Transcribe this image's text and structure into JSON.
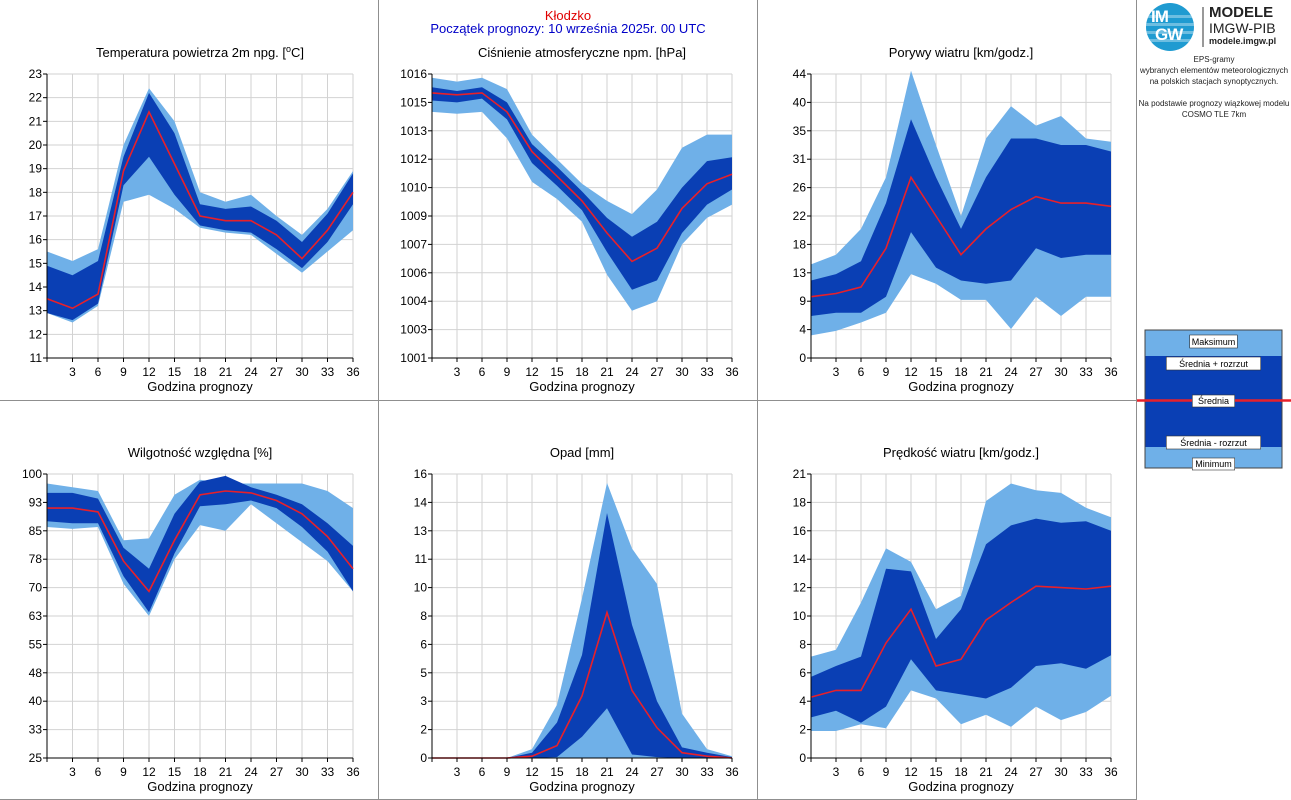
{
  "header": {
    "station": "Kłodzko",
    "forecast_start": "Początek prognozy: 10 września 2025r. 00 UTC"
  },
  "logo": {
    "circle_top": "IM",
    "circle_bottom": "GW",
    "line1": "MODELE",
    "line2": "IMGW-PIB",
    "line3": "modele.imgw.pl"
  },
  "description": {
    "lines": [
      "EPS-gramy",
      "wybranych elementów meteorologicznych",
      "na polskich stacjach  synoptycznych.",
      "",
      "Na podstawie prognozy wiązkowej modelu",
      "COSMO TLE 7km"
    ]
  },
  "legend": {
    "max": "Maksimum",
    "mean_plus": "Średnia + rozrzut",
    "mean": "Średnia",
    "mean_minus": "Średnia - rozrzut",
    "min": "Minimum"
  },
  "colors": {
    "envelope": "#6fb0e8",
    "spread": "#0a3fb4",
    "mean": "#e8202a",
    "background": "#ffffff",
    "station_text": "#e00000",
    "start_text": "#0000c8"
  },
  "chart_data": [
    {
      "type": "area",
      "title_parts": [
        "Temperatura powietrza 2m npg. [",
        "o",
        "C]"
      ],
      "xlabel": "Godzina prognozy",
      "x": [
        0,
        3,
        6,
        9,
        12,
        15,
        18,
        21,
        24,
        27,
        30,
        33,
        36
      ],
      "xticks": [
        3,
        6,
        9,
        12,
        15,
        18,
        21,
        24,
        27,
        30,
        33,
        36
      ],
      "ylim": [
        11,
        23
      ],
      "yticks": [
        "11",
        "12",
        "13",
        "14",
        "15",
        "16",
        "17",
        "18",
        "19",
        "20",
        "21",
        "22",
        "23"
      ],
      "grid": true,
      "max": [
        15.5,
        15.1,
        15.6,
        20.0,
        22.4,
        21.0,
        18.0,
        17.6,
        17.9,
        17.0,
        16.2,
        17.3,
        18.9
      ],
      "mean_plus": [
        14.9,
        14.5,
        15.1,
        19.5,
        22.2,
        20.5,
        17.5,
        17.3,
        17.4,
        16.8,
        15.9,
        17.1,
        18.8
      ],
      "mean": [
        13.5,
        13.1,
        13.7,
        18.9,
        21.4,
        19.2,
        17.0,
        16.8,
        16.8,
        16.2,
        15.2,
        16.4,
        18.0
      ],
      "mean_minus": [
        12.9,
        12.6,
        13.3,
        18.3,
        19.5,
        17.9,
        16.6,
        16.4,
        16.3,
        15.6,
        14.8,
        15.9,
        17.5
      ],
      "min": [
        12.9,
        12.5,
        13.2,
        17.6,
        17.9,
        17.3,
        16.5,
        16.3,
        16.2,
        15.4,
        14.6,
        15.5,
        16.4
      ]
    },
    {
      "type": "area",
      "title_parts": [
        "Ciśnienie atmosferyczne npm. [hPa]"
      ],
      "xlabel": "Godzina prognozy",
      "x": [
        0,
        3,
        6,
        9,
        12,
        15,
        18,
        21,
        24,
        27,
        30,
        33,
        36
      ],
      "xticks": [
        3,
        6,
        9,
        12,
        15,
        18,
        21,
        24,
        27,
        30,
        33,
        36
      ],
      "ylim": [
        1001,
        1016
      ],
      "yticks": [
        "1001",
        "1003",
        "1004",
        "1006",
        "1007",
        "1009",
        "1010",
        "1012",
        "1013",
        "1015",
        "1016"
      ],
      "grid": true,
      "max": [
        1015.8,
        1015.6,
        1015.8,
        1015.2,
        1012.8,
        1011.5,
        1010.2,
        1009.3,
        1008.6,
        1009.9,
        1012.1,
        1012.8,
        1012.8
      ],
      "mean_plus": [
        1015.3,
        1015.1,
        1015.3,
        1014.5,
        1012.3,
        1011.1,
        1009.8,
        1008.4,
        1007.4,
        1008.2,
        1010.0,
        1011.4,
        1011.6
      ],
      "mean": [
        1015.0,
        1014.9,
        1015.0,
        1014.0,
        1011.9,
        1010.6,
        1009.3,
        1007.6,
        1006.1,
        1006.8,
        1008.9,
        1010.2,
        1010.7
      ],
      "mean_minus": [
        1014.6,
        1014.5,
        1014.7,
        1013.6,
        1011.3,
        1010.1,
        1008.8,
        1006.6,
        1004.6,
        1005.1,
        1007.6,
        1009.1,
        1009.9
      ],
      "min": [
        1014.0,
        1013.9,
        1014.0,
        1012.6,
        1010.3,
        1009.4,
        1008.2,
        1005.4,
        1003.5,
        1004.0,
        1007.0,
        1008.4,
        1009.1
      ]
    },
    {
      "type": "area",
      "title_parts": [
        "Porywy wiatru [km/godz.]"
      ],
      "xlabel": "Godzina prognozy",
      "x": [
        0,
        3,
        6,
        9,
        12,
        15,
        18,
        21,
        24,
        27,
        30,
        33,
        36
      ],
      "xticks": [
        3,
        6,
        9,
        12,
        15,
        18,
        21,
        24,
        27,
        30,
        33,
        36
      ],
      "ylim": [
        0,
        44
      ],
      "yticks": [
        "0",
        "4",
        "9",
        "13",
        "18",
        "22",
        "26",
        "31",
        "35",
        "40",
        "44"
      ],
      "grid": true,
      "max": [
        14.5,
        16.0,
        20.0,
        28.0,
        44.5,
        33.0,
        22.0,
        34.0,
        39.0,
        36.0,
        37.5,
        34.0,
        33.5
      ],
      "mean_plus": [
        12.0,
        13.0,
        15.0,
        24.0,
        37.0,
        28.0,
        20.0,
        28.0,
        34.0,
        34.0,
        33.0,
        33.0,
        32.0
      ],
      "mean": [
        9.5,
        10.0,
        11.0,
        17.0,
        28.0,
        22.0,
        16.0,
        20.0,
        23.0,
        25.0,
        24.0,
        24.0,
        23.5
      ],
      "mean_minus": [
        6.5,
        7.0,
        7.0,
        9.5,
        19.5,
        14.0,
        12.0,
        11.5,
        12.0,
        17.0,
        15.5,
        16.0,
        16.0
      ],
      "min": [
        3.5,
        4.2,
        5.5,
        7.0,
        13.0,
        11.5,
        9.0,
        9.0,
        4.5,
        9.5,
        6.5,
        9.5,
        9.5
      ]
    },
    {
      "type": "area",
      "title_parts": [
        "Wilgotność względna [%]"
      ],
      "xlabel": "Godzina prognozy",
      "x": [
        0,
        3,
        6,
        9,
        12,
        15,
        18,
        21,
        24,
        27,
        30,
        33,
        36
      ],
      "xticks": [
        3,
        6,
        9,
        12,
        15,
        18,
        21,
        24,
        27,
        30,
        33,
        36
      ],
      "ylim": [
        25,
        100
      ],
      "yticks": [
        "25",
        "33",
        "40",
        "48",
        "55",
        "63",
        "70",
        "78",
        "85",
        "93",
        "100"
      ],
      "grid": true,
      "max": [
        97.5,
        96.5,
        95.5,
        82.5,
        83.0,
        94.5,
        98.5,
        97.5,
        97.5,
        97.5,
        97.5,
        95.5,
        91.0
      ],
      "mean_plus": [
        95.0,
        95.0,
        93.5,
        80.5,
        75.0,
        89.5,
        98.0,
        99.5,
        96.5,
        94.5,
        92.0,
        87.0,
        81.0
      ],
      "mean": [
        91.0,
        91.0,
        90.0,
        77.0,
        69.0,
        82.5,
        94.5,
        95.5,
        95.0,
        93.0,
        89.5,
        83.5,
        75.0
      ],
      "mean_minus": [
        87.5,
        87.0,
        87.0,
        73.0,
        63.5,
        79.0,
        91.5,
        92.0,
        93.0,
        91.0,
        86.0,
        79.5,
        69.0
      ],
      "min": [
        86.0,
        85.5,
        86.0,
        71.0,
        62.5,
        77.5,
        86.5,
        85.0,
        92.0,
        87.0,
        82.0,
        77.0,
        69.0
      ]
    },
    {
      "type": "area",
      "title_parts": [
        "Opad [mm]"
      ],
      "xlabel": "Godzina prognozy",
      "x": [
        0,
        3,
        6,
        9,
        12,
        15,
        18,
        21,
        24,
        27,
        30,
        33,
        36
      ],
      "xticks": [
        3,
        6,
        9,
        12,
        15,
        18,
        21,
        24,
        27,
        30,
        33,
        36
      ],
      "ylim": [
        0,
        16
      ],
      "yticks": [
        "0",
        "2",
        "3",
        "5",
        "6",
        "8",
        "10",
        "11",
        "13",
        "14",
        "16"
      ],
      "grid": true,
      "max": [
        0,
        0,
        0,
        0,
        0.5,
        3.0,
        9.0,
        15.5,
        11.8,
        9.8,
        2.5,
        0.5,
        0.1
      ],
      "mean_plus": [
        0,
        0,
        0,
        0,
        0.3,
        2.0,
        5.8,
        13.8,
        7.5,
        3.2,
        0.6,
        0.3,
        0.05
      ],
      "mean": [
        0,
        0,
        0,
        0,
        0.1,
        0.7,
        3.5,
        8.2,
        3.8,
        1.7,
        0.3,
        0.1,
        0.0
      ],
      "mean_minus": [
        0,
        0,
        0,
        0,
        0,
        0.05,
        1.2,
        2.8,
        0.2,
        0.05,
        0,
        0,
        0
      ],
      "min": [
        0,
        0,
        0,
        0,
        0,
        0,
        0,
        0,
        0,
        0,
        0,
        0,
        0
      ]
    },
    {
      "type": "area",
      "title_parts": [
        "Prędkość wiatru [km/godz.]"
      ],
      "xlabel": "Godzina prognozy",
      "x": [
        0,
        3,
        6,
        9,
        12,
        15,
        18,
        21,
        24,
        27,
        30,
        33,
        36
      ],
      "xticks": [
        3,
        6,
        9,
        12,
        15,
        18,
        21,
        24,
        27,
        30,
        33,
        36
      ],
      "ylim": [
        0,
        21
      ],
      "yticks": [
        "0",
        "2",
        "4",
        "6",
        "8",
        "10",
        "12",
        "14",
        "16",
        "18",
        "21"
      ],
      "grid": true,
      "max": [
        7.5,
        8.0,
        11.5,
        15.5,
        14.5,
        11.0,
        12.0,
        19.0,
        20.3,
        19.8,
        19.6,
        18.5,
        17.8
      ],
      "mean_plus": [
        6.0,
        6.8,
        7.5,
        14.0,
        13.8,
        8.8,
        11.0,
        15.8,
        17.2,
        17.7,
        17.4,
        17.5,
        16.8
      ],
      "mean": [
        4.5,
        5.0,
        5.0,
        8.5,
        11.0,
        6.8,
        7.3,
        10.2,
        11.5,
        12.7,
        12.6,
        12.5,
        12.7
      ],
      "mean_minus": [
        3.0,
        3.5,
        2.6,
        3.8,
        7.3,
        5.0,
        4.7,
        4.4,
        5.2,
        6.8,
        7.0,
        6.6,
        7.6
      ],
      "min": [
        2.0,
        2.0,
        2.5,
        2.2,
        5.0,
        4.4,
        2.5,
        3.2,
        2.3,
        3.8,
        2.8,
        3.4,
        4.6
      ]
    }
  ]
}
